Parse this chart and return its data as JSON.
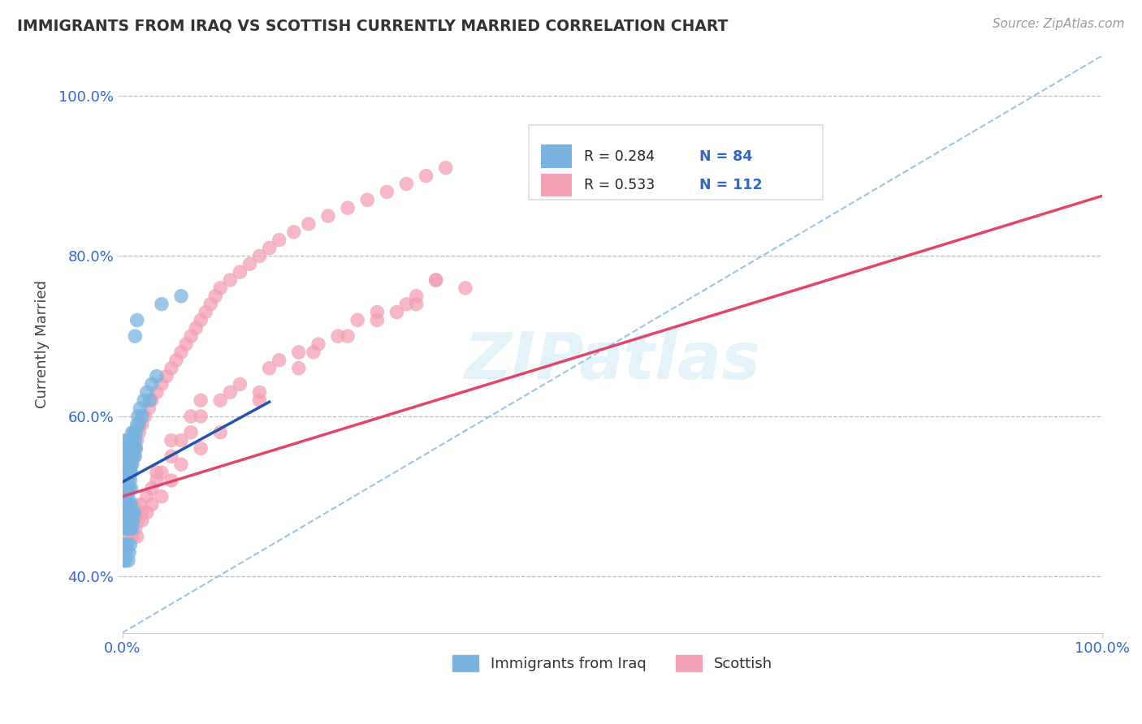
{
  "title": "IMMIGRANTS FROM IRAQ VS SCOTTISH CURRENTLY MARRIED CORRELATION CHART",
  "source_text": "Source: ZipAtlas.com",
  "ylabel": "Currently Married",
  "watermark": "ZIPatlas",
  "xlim": [
    0.0,
    1.0
  ],
  "ylim": [
    0.33,
    1.05
  ],
  "x_ticks": [
    0.0,
    1.0
  ],
  "x_tick_labels": [
    "0.0%",
    "100.0%"
  ],
  "y_ticks": [
    0.4,
    0.6,
    0.8,
    1.0
  ],
  "y_tick_labels": [
    "40.0%",
    "60.0%",
    "80.0%",
    "100.0%"
  ],
  "grid_color": "#bbbbbb",
  "background_color": "#ffffff",
  "blue_color": "#7ab3e0",
  "pink_color": "#f4a0b5",
  "blue_line_color": "#2255aa",
  "pink_line_color": "#e0456a",
  "dash_line_color": "#99c4e8",
  "legend_R_blue": "R = 0.284",
  "legend_N_blue": "N = 84",
  "legend_R_pink": "R = 0.533",
  "legend_N_pink": "N = 112",
  "legend_label_blue": "Immigrants from Iraq",
  "legend_label_pink": "Scottish",
  "blue_line_x": [
    0.0,
    0.15
  ],
  "blue_line_y": [
    0.518,
    0.618
  ],
  "pink_line_x": [
    0.0,
    1.0
  ],
  "pink_line_y": [
    0.5,
    0.875
  ],
  "dash_line_x": [
    0.0,
    1.0
  ],
  "dash_line_y": [
    0.33,
    1.05
  ],
  "iraq_x": [
    0.001,
    0.002,
    0.002,
    0.002,
    0.003,
    0.003,
    0.003,
    0.003,
    0.004,
    0.004,
    0.004,
    0.004,
    0.005,
    0.005,
    0.005,
    0.005,
    0.006,
    0.006,
    0.006,
    0.006,
    0.007,
    0.007,
    0.007,
    0.008,
    0.008,
    0.008,
    0.009,
    0.009,
    0.009,
    0.01,
    0.01,
    0.01,
    0.011,
    0.011,
    0.012,
    0.012,
    0.013,
    0.013,
    0.014,
    0.014,
    0.015,
    0.016,
    0.017,
    0.018,
    0.02,
    0.022,
    0.025,
    0.028,
    0.03,
    0.035,
    0.002,
    0.002,
    0.003,
    0.003,
    0.004,
    0.004,
    0.005,
    0.005,
    0.006,
    0.006,
    0.007,
    0.007,
    0.008,
    0.008,
    0.009,
    0.009,
    0.01,
    0.01,
    0.011,
    0.012,
    0.001,
    0.001,
    0.002,
    0.003,
    0.003,
    0.004,
    0.005,
    0.006,
    0.007,
    0.008,
    0.013,
    0.015,
    0.04,
    0.06
  ],
  "iraq_y": [
    0.52,
    0.54,
    0.5,
    0.56,
    0.55,
    0.51,
    0.53,
    0.57,
    0.54,
    0.52,
    0.56,
    0.5,
    0.55,
    0.53,
    0.51,
    0.57,
    0.54,
    0.52,
    0.56,
    0.5,
    0.55,
    0.53,
    0.51,
    0.56,
    0.54,
    0.52,
    0.55,
    0.53,
    0.51,
    0.56,
    0.54,
    0.58,
    0.55,
    0.57,
    0.56,
    0.58,
    0.57,
    0.55,
    0.58,
    0.56,
    0.59,
    0.6,
    0.59,
    0.61,
    0.6,
    0.62,
    0.63,
    0.62,
    0.64,
    0.65,
    0.48,
    0.46,
    0.49,
    0.47,
    0.48,
    0.46,
    0.49,
    0.47,
    0.48,
    0.46,
    0.49,
    0.47,
    0.48,
    0.46,
    0.49,
    0.47,
    0.48,
    0.46,
    0.47,
    0.48,
    0.44,
    0.42,
    0.43,
    0.44,
    0.42,
    0.43,
    0.44,
    0.42,
    0.43,
    0.44,
    0.7,
    0.72,
    0.74,
    0.75
  ],
  "scottish_x": [
    0.001,
    0.002,
    0.003,
    0.003,
    0.004,
    0.005,
    0.005,
    0.006,
    0.007,
    0.008,
    0.009,
    0.01,
    0.011,
    0.012,
    0.013,
    0.015,
    0.017,
    0.02,
    0.023,
    0.027,
    0.03,
    0.035,
    0.04,
    0.045,
    0.05,
    0.055,
    0.06,
    0.065,
    0.07,
    0.075,
    0.08,
    0.085,
    0.09,
    0.095,
    0.1,
    0.11,
    0.12,
    0.13,
    0.14,
    0.15,
    0.16,
    0.175,
    0.19,
    0.21,
    0.23,
    0.25,
    0.27,
    0.29,
    0.31,
    0.33,
    0.003,
    0.004,
    0.005,
    0.006,
    0.007,
    0.008,
    0.009,
    0.01,
    0.012,
    0.014,
    0.016,
    0.018,
    0.02,
    0.025,
    0.03,
    0.035,
    0.04,
    0.05,
    0.06,
    0.07,
    0.08,
    0.1,
    0.12,
    0.15,
    0.18,
    0.22,
    0.26,
    0.3,
    0.35,
    0.003,
    0.005,
    0.008,
    0.01,
    0.013,
    0.015,
    0.02,
    0.025,
    0.03,
    0.04,
    0.05,
    0.06,
    0.08,
    0.1,
    0.14,
    0.18,
    0.23,
    0.11,
    0.16,
    0.05,
    0.28,
    0.3,
    0.32,
    0.2,
    0.24,
    0.14,
    0.29,
    0.32,
    0.26,
    0.195,
    0.07,
    0.08,
    0.035
  ],
  "scottish_y": [
    0.51,
    0.52,
    0.5,
    0.54,
    0.52,
    0.51,
    0.55,
    0.53,
    0.55,
    0.53,
    0.54,
    0.55,
    0.56,
    0.55,
    0.56,
    0.57,
    0.58,
    0.59,
    0.6,
    0.61,
    0.62,
    0.63,
    0.64,
    0.65,
    0.66,
    0.67,
    0.68,
    0.69,
    0.7,
    0.71,
    0.72,
    0.73,
    0.74,
    0.75,
    0.76,
    0.77,
    0.78,
    0.79,
    0.8,
    0.81,
    0.82,
    0.83,
    0.84,
    0.85,
    0.86,
    0.87,
    0.88,
    0.89,
    0.9,
    0.91,
    0.48,
    0.47,
    0.49,
    0.48,
    0.47,
    0.49,
    0.48,
    0.47,
    0.49,
    0.48,
    0.47,
    0.49,
    0.48,
    0.5,
    0.51,
    0.52,
    0.53,
    0.55,
    0.57,
    0.58,
    0.6,
    0.62,
    0.64,
    0.66,
    0.68,
    0.7,
    0.72,
    0.74,
    0.76,
    0.46,
    0.45,
    0.46,
    0.45,
    0.46,
    0.45,
    0.47,
    0.48,
    0.49,
    0.5,
    0.52,
    0.54,
    0.56,
    0.58,
    0.62,
    0.66,
    0.7,
    0.63,
    0.67,
    0.57,
    0.73,
    0.75,
    0.77,
    0.69,
    0.72,
    0.63,
    0.74,
    0.77,
    0.73,
    0.68,
    0.6,
    0.62,
    0.53
  ]
}
